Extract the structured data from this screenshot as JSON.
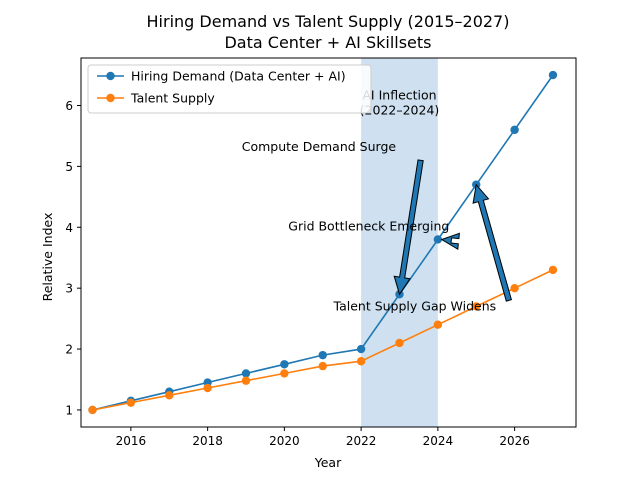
{
  "chart_data": {
    "type": "line",
    "title_line1": "Hiring Demand vs Talent Supply (2015–2027)",
    "title_line2": "Data Center + AI Skillsets",
    "xlabel": "Year",
    "ylabel": "Relative Index",
    "xlim": [
      2014.7,
      2027.6
    ],
    "ylim": [
      0.72,
      6.78
    ],
    "xticks": [
      2016,
      2018,
      2020,
      2022,
      2024,
      2026
    ],
    "yticks": [
      1,
      2,
      3,
      4,
      5,
      6
    ],
    "x": [
      2015,
      2016,
      2017,
      2018,
      2019,
      2020,
      2021,
      2022,
      2023,
      2024,
      2025,
      2026,
      2027
    ],
    "series": [
      {
        "name": "Hiring Demand (Data Center + AI)",
        "color": "#1f77b4",
        "values": [
          1.0,
          1.15,
          1.3,
          1.45,
          1.6,
          1.75,
          1.9,
          2.0,
          2.9,
          3.8,
          4.7,
          5.6,
          6.5
        ]
      },
      {
        "name": "Talent Supply",
        "color": "#ff7f0e",
        "values": [
          1.0,
          1.12,
          1.24,
          1.36,
          1.48,
          1.6,
          1.72,
          1.8,
          2.1,
          2.4,
          2.7,
          3.0,
          3.3
        ]
      }
    ],
    "shaded_region": {
      "x_start": 2022,
      "x_end": 2024,
      "color": "#cfe1f0",
      "label_line1": "AI Inflection",
      "label_line2": "(2022–2024)"
    },
    "annotations": [
      {
        "text": "Compute Demand Surge",
        "text_x": 2020.9,
        "text_y": 5.25,
        "target_x": 2023,
        "target_y": 2.9
      },
      {
        "text": "Grid Bottleneck Emerging",
        "text_x": 2022.2,
        "text_y": 3.95,
        "target_x": 2024.1,
        "target_y": 3.8
      },
      {
        "text": "Talent Supply Gap Widens",
        "text_x": 2023.4,
        "text_y": 2.63,
        "target_x": 2025,
        "target_y": 4.7
      }
    ],
    "legend_position": "top-left",
    "grid": false
  }
}
